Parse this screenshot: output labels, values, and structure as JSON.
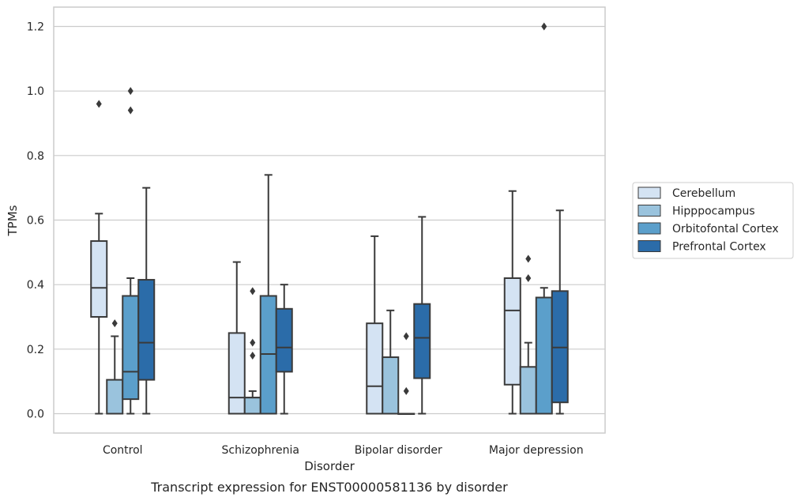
{
  "caption": "Transcript expression for ENST00000581136 by disorder",
  "chart_data": {
    "type": "box",
    "xlabel": "Disorder",
    "ylabel": "TPMs",
    "ylim": [
      -0.06,
      1.26
    ],
    "yticks": [
      0.0,
      0.2,
      0.4,
      0.6,
      0.8,
      1.0,
      1.2
    ],
    "ytick_labels": [
      "0.0",
      "0.2",
      "0.4",
      "0.6",
      "0.8",
      "1.0",
      "1.2"
    ],
    "grid": "horizontal",
    "legend_position": "right",
    "categories": [
      "Control",
      "Schizophrenia",
      "Bipolar disorder",
      "Major depression"
    ],
    "series": [
      {
        "name": "Cerebellum",
        "color": "#d4e3f3",
        "boxes": [
          {
            "whislo": 0.0,
            "q1": 0.3,
            "median": 0.39,
            "q3": 0.535,
            "whishi": 0.62,
            "fliers": [
              0.96
            ]
          },
          {
            "whislo": 0.0,
            "q1": 0.0,
            "median": 0.05,
            "q3": 0.25,
            "whishi": 0.47,
            "fliers": []
          },
          {
            "whislo": 0.0,
            "q1": 0.0,
            "median": 0.085,
            "q3": 0.28,
            "whishi": 0.55,
            "fliers": []
          },
          {
            "whislo": 0.0,
            "q1": 0.09,
            "median": 0.32,
            "q3": 0.42,
            "whishi": 0.69,
            "fliers": []
          }
        ]
      },
      {
        "name": "Hipppocampus",
        "color": "#9ac3dd",
        "boxes": [
          {
            "whislo": 0.0,
            "q1": 0.0,
            "median": 0.0,
            "q3": 0.105,
            "whishi": 0.24,
            "fliers": [
              0.28
            ]
          },
          {
            "whislo": 0.0,
            "q1": 0.0,
            "median": 0.05,
            "q3": 0.05,
            "whishi": 0.07,
            "fliers": [
              0.18,
              0.22,
              0.38
            ]
          },
          {
            "whislo": 0.0,
            "q1": 0.0,
            "median": 0.0,
            "q3": 0.175,
            "whishi": 0.32,
            "fliers": []
          },
          {
            "whislo": 0.0,
            "q1": 0.0,
            "median": 0.0,
            "q3": 0.145,
            "whishi": 0.22,
            "fliers": [
              0.42,
              0.48
            ]
          }
        ]
      },
      {
        "name": "Orbitofontal Cortex",
        "color": "#5b9fcb",
        "boxes": [
          {
            "whislo": 0.0,
            "q1": 0.045,
            "median": 0.13,
            "q3": 0.365,
            "whishi": 0.42,
            "fliers": [
              0.94,
              1.0
            ]
          },
          {
            "whislo": 0.0,
            "q1": 0.0,
            "median": 0.185,
            "q3": 0.365,
            "whishi": 0.74,
            "fliers": []
          },
          {
            "whislo": 0.0,
            "q1": 0.0,
            "median": 0.0,
            "q3": 0.0,
            "whishi": 0.0,
            "fliers": [
              0.07,
              0.24
            ]
          },
          {
            "whislo": 0.0,
            "q1": 0.0,
            "median": 0.0,
            "q3": 0.36,
            "whishi": 0.39,
            "fliers": [
              1.2
            ]
          }
        ]
      },
      {
        "name": "Prefrontal Cortex",
        "color": "#2b6ca9",
        "boxes": [
          {
            "whislo": 0.0,
            "q1": 0.105,
            "median": 0.22,
            "q3": 0.415,
            "whishi": 0.7,
            "fliers": []
          },
          {
            "whislo": 0.0,
            "q1": 0.13,
            "median": 0.205,
            "q3": 0.325,
            "whishi": 0.4,
            "fliers": []
          },
          {
            "whislo": 0.0,
            "q1": 0.11,
            "median": 0.235,
            "q3": 0.34,
            "whishi": 0.61,
            "fliers": []
          },
          {
            "whislo": 0.0,
            "q1": 0.035,
            "median": 0.205,
            "q3": 0.38,
            "whishi": 0.63,
            "fliers": []
          }
        ]
      }
    ],
    "style": {
      "line_color": "#3a3a3a",
      "grid_color": "#cccccc",
      "frame_color": "#cccccc",
      "text_color": "#262626"
    }
  }
}
